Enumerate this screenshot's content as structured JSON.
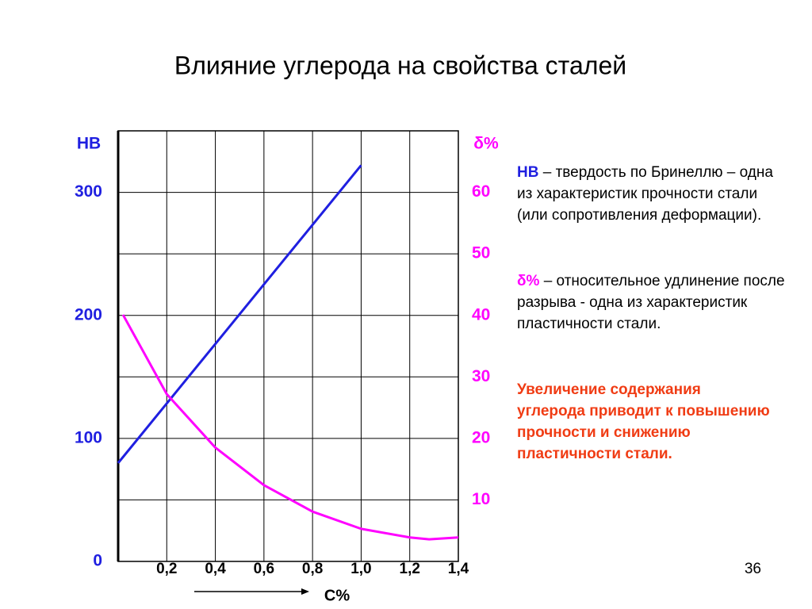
{
  "chart_data": {
    "type": "line",
    "title": "Влияние углерода на свойства сталей",
    "x_label": "C%",
    "y_label": "HB",
    "y2_label": "δ%",
    "xlim": [
      0,
      1.4
    ],
    "xticks": [
      {
        "value": 0.2,
        "label": "0,2"
      },
      {
        "value": 0.4,
        "label": "0,4"
      },
      {
        "value": 0.6,
        "label": "0,6"
      },
      {
        "value": 0.8,
        "label": "0,8"
      },
      {
        "value": 1.0,
        "label": "1,0"
      },
      {
        "value": 1.2,
        "label": "1,2"
      },
      {
        "value": 1.4,
        "label": "1,4"
      }
    ],
    "ylim": [
      0,
      350
    ],
    "yticks": [
      0,
      100,
      200,
      300
    ],
    "y2lim": [
      0,
      70
    ],
    "y2ticks": [
      10,
      20,
      30,
      40,
      50,
      60
    ],
    "grid": true,
    "series": [
      {
        "color": "#1f1fe0",
        "axis": "y",
        "x": [
          0,
          1.0
        ],
        "values": [
          80,
          322
        ]
      },
      {
        "color": "#ff00ff",
        "axis": "y2",
        "x": [
          0.02,
          0.2,
          0.4,
          0.6,
          0.8,
          1.0,
          1.2,
          1.28,
          1.4
        ],
        "values": [
          40.1,
          27.2,
          18.5,
          12.4,
          8.1,
          5.3,
          3.9,
          3.6,
          3.9
        ]
      }
    ]
  },
  "notes": [
    {
      "term": "HB",
      "text": " – твердость по Бринеллю – одна из характеристик прочности стали (или сопротивления деформации)."
    },
    {
      "term": "δ%",
      "text": " – относительное удлинение после разрыва -  одна из характеристик пластичности стали."
    }
  ],
  "conclusion": "Увеличение содержания углерода приводит к повышению прочности и снижению пластичности стали.",
  "page_number": "36"
}
